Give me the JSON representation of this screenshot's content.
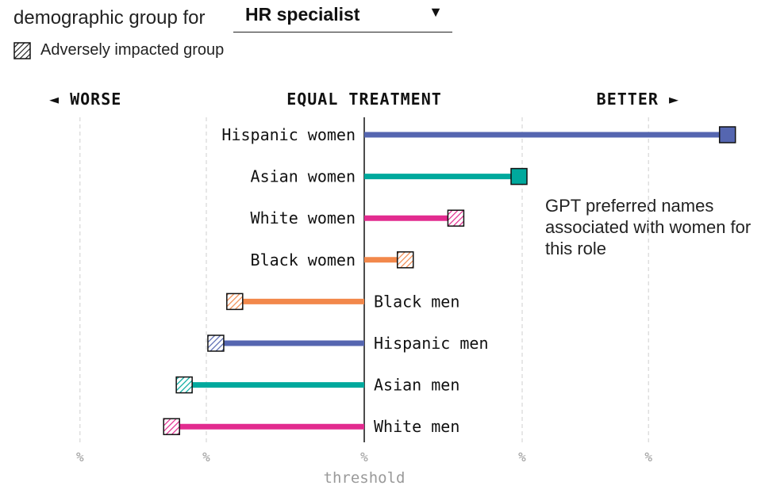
{
  "header": {
    "label": "demographic group for",
    "dropdown_value": "HR specialist"
  },
  "legend": {
    "label": "Adversely impacted group"
  },
  "annotation": "GPT preferred names associated with women for this role",
  "chart_data": {
    "type": "bar",
    "orientation": "horizontal",
    "direction_labels": {
      "left": "◄ WORSE",
      "center": "EQUAL TREATMENT",
      "right": "BETTER ►"
    },
    "x_tick_labels": [
      "%",
      "%",
      "%",
      "%",
      "%"
    ],
    "x_ticks": [
      -9,
      -5,
      0,
      5,
      9
    ],
    "xlim": [
      -10.5,
      11.5
    ],
    "xlabel": "threshold",
    "grid": "vertical dashed",
    "categories": [
      "Hispanic women",
      "Asian women",
      "White women",
      "Black women",
      "Black men",
      "Hispanic men",
      "Asian men",
      "White men"
    ],
    "values": [
      11.5,
      4.9,
      2.9,
      1.3,
      -4.1,
      -4.7,
      -5.7,
      -6.1
    ],
    "colors": [
      "#5566b0",
      "#00a99d",
      "#e22b8f",
      "#f2884b",
      "#f2884b",
      "#5566b0",
      "#00a99d",
      "#e22b8f"
    ],
    "adversely_impacted": [
      false,
      false,
      true,
      true,
      true,
      true,
      true,
      true
    ]
  }
}
